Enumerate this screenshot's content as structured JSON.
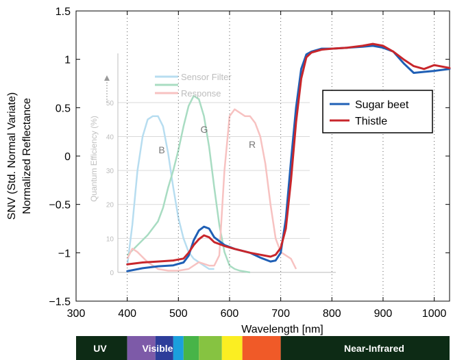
{
  "chart_data": {
    "type": "line",
    "title": "",
    "xlabel": "Wavelength [nm]",
    "ylabel_line1": "SNV (Std. Normal Variate)",
    "ylabel_line2": "Normalized  Reflectance",
    "xlim": [
      300,
      1030
    ],
    "ylim": [
      -1.5,
      1.5
    ],
    "xticks": [
      300,
      400,
      500,
      600,
      700,
      800,
      900,
      1000
    ],
    "yticks": [
      -1.5,
      -1,
      -0.5,
      0,
      0.5,
      1,
      1.5
    ],
    "ytick_labels": [
      "−1.5",
      "−1",
      "−0.5",
      "0",
      "0.5",
      "1",
      "1.5"
    ],
    "grid": "dotted-vertical",
    "legend_position": "right",
    "series": [
      {
        "name": "Sugar beet",
        "color": "#1f5fb5",
        "x": [
          400,
          430,
          460,
          490,
          510,
          520,
          530,
          540,
          550,
          560,
          570,
          590,
          610,
          640,
          660,
          680,
          690,
          700,
          710,
          720,
          730,
          740,
          750,
          760,
          780,
          800,
          830,
          860,
          880,
          900,
          920,
          940,
          960,
          980,
          1000,
          1030
        ],
        "y": [
          -1.19,
          -1.16,
          -1.14,
          -1.13,
          -1.1,
          -1.03,
          -0.87,
          -0.77,
          -0.73,
          -0.75,
          -0.84,
          -0.92,
          -0.96,
          -1.0,
          -1.05,
          -1.09,
          -1.08,
          -1.0,
          -0.65,
          -0.05,
          0.5,
          0.9,
          1.05,
          1.08,
          1.11,
          1.11,
          1.12,
          1.13,
          1.14,
          1.12,
          1.08,
          0.96,
          0.86,
          0.87,
          0.88,
          0.9
        ]
      },
      {
        "name": "Thistle",
        "color": "#c8262b",
        "x": [
          400,
          430,
          460,
          490,
          510,
          520,
          530,
          540,
          550,
          560,
          570,
          590,
          610,
          640,
          660,
          680,
          690,
          700,
          710,
          720,
          730,
          740,
          750,
          760,
          780,
          800,
          830,
          860,
          880,
          900,
          920,
          940,
          960,
          980,
          1000,
          1030
        ],
        "y": [
          -1.12,
          -1.1,
          -1.09,
          -1.08,
          -1.06,
          -1.0,
          -0.92,
          -0.86,
          -0.82,
          -0.84,
          -0.89,
          -0.93,
          -0.96,
          -1.0,
          -1.02,
          -1.04,
          -1.02,
          -0.95,
          -0.75,
          -0.25,
          0.35,
          0.8,
          1.02,
          1.07,
          1.1,
          1.11,
          1.12,
          1.14,
          1.16,
          1.14,
          1.08,
          1.0,
          0.93,
          0.9,
          0.94,
          0.91
        ]
      }
    ],
    "inset": {
      "title_line1": "Sensor Filter",
      "title_line2": "Response",
      "ylabel": "Quantum Efficiency (%)",
      "ylim": [
        0,
        55
      ],
      "yticks": [
        0,
        10,
        20,
        30,
        40,
        50
      ],
      "channel_labels": [
        "B",
        "G",
        "R"
      ],
      "series": [
        {
          "name": "B",
          "color": "#b7ddf0",
          "x": [
            400,
            410,
            420,
            430,
            440,
            450,
            460,
            470,
            480,
            490,
            500,
            510,
            520,
            530,
            540,
            550,
            560,
            570
          ],
          "y": [
            2,
            14,
            30,
            40,
            45,
            46,
            46,
            43,
            35,
            25,
            16,
            10,
            6,
            4,
            3,
            2,
            1,
            1
          ]
        },
        {
          "name": "G",
          "color": "#a8dcc2",
          "x": [
            400,
            420,
            440,
            460,
            470,
            480,
            490,
            500,
            510,
            520,
            530,
            540,
            550,
            560,
            570,
            580,
            590,
            600,
            610,
            620,
            640
          ],
          "y": [
            5,
            8,
            11,
            15,
            19,
            25,
            30,
            36,
            43,
            49,
            52,
            51,
            46,
            37,
            25,
            14,
            6,
            2,
            1,
            0.5,
            0
          ]
        },
        {
          "name": "R",
          "color": "#f7c2c1",
          "x": [
            400,
            410,
            420,
            440,
            460,
            480,
            500,
            520,
            540,
            560,
            570,
            580,
            590,
            600,
            610,
            620,
            630,
            640,
            650,
            660,
            670,
            680,
            690,
            700,
            710,
            720,
            730
          ],
          "y": [
            4,
            7,
            6,
            3,
            1,
            0.5,
            0.5,
            1,
            3,
            2,
            2,
            5,
            30,
            46,
            48,
            47,
            46,
            46,
            44,
            40,
            32,
            20,
            10,
            6,
            5,
            4,
            1
          ]
        }
      ]
    },
    "spectrum_bar": {
      "uv_label": "UV",
      "visible_label": "Visible",
      "nir_label": "Near-Infrared",
      "segments": [
        {
          "from": 300,
          "to": 400,
          "color": "#0d2b15"
        },
        {
          "from": 400,
          "to": 455,
          "color": "#7d5aa8"
        },
        {
          "from": 455,
          "to": 490,
          "color": "#2d3d9a"
        },
        {
          "from": 490,
          "to": 510,
          "color": "#1ba0dd"
        },
        {
          "from": 510,
          "to": 540,
          "color": "#47b448"
        },
        {
          "from": 540,
          "to": 585,
          "color": "#86c341"
        },
        {
          "from": 585,
          "to": 625,
          "color": "#fbee22"
        },
        {
          "from": 625,
          "to": 700,
          "color": "#f05a28"
        },
        {
          "from": 700,
          "to": 1030,
          "color": "#0d2b15"
        }
      ]
    }
  }
}
